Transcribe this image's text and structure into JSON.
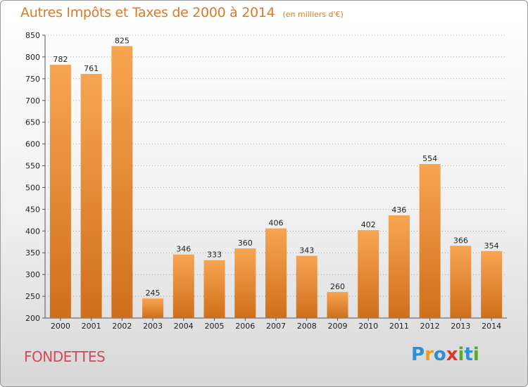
{
  "title": "Autres Impôts et Taxes de 2000 à 2014",
  "title_unit": "(en milliers d'€)",
  "commune": "FONDETTES",
  "logo": {
    "text": "Proxiti",
    "letters": [
      "P",
      "r",
      "o",
      "x",
      "i",
      "t",
      "i"
    ],
    "colors": [
      "#2d8fd6",
      "#f39a1b",
      "#2d8fd6",
      "#d63a2f",
      "#5aa832",
      "#2d8fd6",
      "#5aa832"
    ]
  },
  "colors": {
    "title": "#d97a2a",
    "commune": "#d4495a",
    "bar_light": "#f7a552",
    "bar_dark": "#cf6f1c",
    "axis": "#555555",
    "grid": "#7a7a7a"
  },
  "chart_data": {
    "type": "bar",
    "title": "Autres Impôts et Taxes de 2000 à 2014",
    "categories": [
      "2000",
      "2001",
      "2002",
      "2003",
      "2004",
      "2005",
      "2006",
      "2007",
      "2008",
      "2009",
      "2010",
      "2011",
      "2012",
      "2013",
      "2014"
    ],
    "values": [
      782,
      761,
      825,
      245,
      346,
      333,
      360,
      406,
      343,
      260,
      402,
      436,
      554,
      366,
      354
    ],
    "ylim": [
      200,
      850
    ],
    "yticks": [
      200,
      250,
      300,
      350,
      400,
      450,
      500,
      550,
      600,
      650,
      700,
      750,
      800,
      850
    ],
    "xlabel": "",
    "ylabel": "",
    "grid": true
  }
}
